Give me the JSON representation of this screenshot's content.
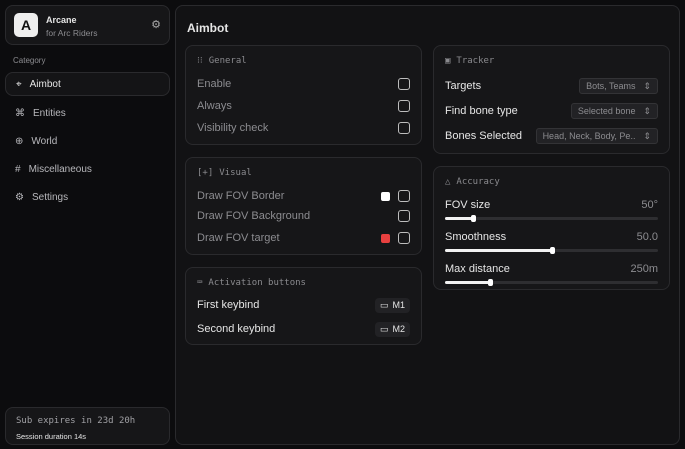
{
  "app": {
    "logo_letter": "A",
    "name": "Arcane",
    "subtitle": "for Arc Riders"
  },
  "sidebar": {
    "category_label": "Category",
    "items": [
      {
        "label": "Aimbot",
        "icon": "crosshair-icon",
        "active": true
      },
      {
        "label": "Entities",
        "icon": "entities-icon"
      },
      {
        "label": "World",
        "icon": "globe-icon"
      },
      {
        "label": "Miscellaneous",
        "icon": "grid-icon"
      },
      {
        "label": "Settings",
        "icon": "gear-icon"
      }
    ],
    "footer": {
      "subscription": "Sub expires in 23d 20h",
      "session": "Session duration 14s"
    }
  },
  "main": {
    "title": "Aimbot",
    "general": {
      "title": "General",
      "items": [
        {
          "label": "Enable",
          "checked": false
        },
        {
          "label": "Always",
          "checked": false
        },
        {
          "label": "Visibility check",
          "checked": false
        }
      ]
    },
    "visual": {
      "title": "Visual",
      "items": [
        {
          "label": "Draw FOV Border",
          "color": "#ffffff",
          "checked": false
        },
        {
          "label": "Draw FOV Background",
          "checked": false
        },
        {
          "label": "Draw FOV target",
          "color": "#e8403f",
          "checked": false
        }
      ]
    },
    "activation": {
      "title": "Activation buttons",
      "items": [
        {
          "label": "First keybind",
          "key": "M1"
        },
        {
          "label": "Second keybind",
          "key": "M2"
        }
      ]
    },
    "tracker": {
      "title": "Tracker",
      "items": [
        {
          "label": "Targets",
          "value": "Bots, Teams"
        },
        {
          "label": "Find bone type",
          "value": "Selected bone"
        },
        {
          "label": "Bones Selected",
          "value": "Head, Neck, Body, Pe.."
        }
      ]
    },
    "accuracy": {
      "title": "Accuracy",
      "items": [
        {
          "label": "FOV size",
          "value": "50°",
          "fill_percent": 13
        },
        {
          "label": "Smoothness",
          "value": "50.0",
          "fill_percent": 50
        },
        {
          "label": "Max distance",
          "value": "250m",
          "fill_percent": 21
        }
      ]
    }
  }
}
